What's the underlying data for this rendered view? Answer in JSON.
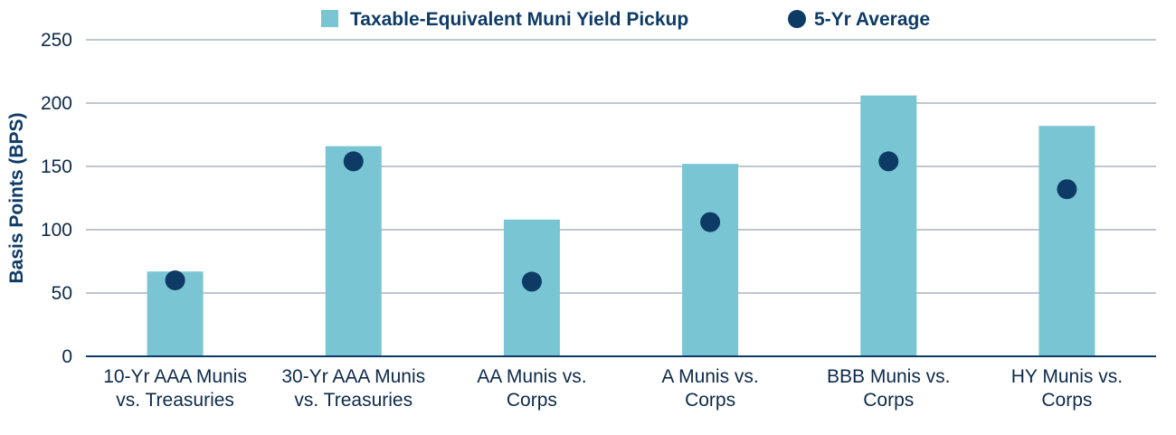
{
  "chart_data": {
    "type": "bar",
    "categories": [
      [
        "10-Yr AAA Munis",
        "vs. Treasuries"
      ],
      [
        "30-Yr AAA Munis",
        "vs. Treasuries"
      ],
      [
        "AA Munis vs.",
        "Corps"
      ],
      [
        "A Munis vs.",
        "Corps"
      ],
      [
        "BBB Munis vs.",
        "Corps"
      ],
      [
        "HY Munis vs.",
        "Corps"
      ]
    ],
    "series": [
      {
        "name": "Taxable-Equivalent Muni Yield Pickup",
        "mark": "bar",
        "values": [
          67,
          166,
          108,
          152,
          206,
          182
        ]
      },
      {
        "name": "5-Yr Average",
        "mark": "dot",
        "values": [
          60,
          154,
          59,
          106,
          154,
          132
        ]
      }
    ],
    "ylabel": "Basis Points (BPS)",
    "xlabel": "",
    "ylim": [
      0,
      250
    ],
    "yticks": [
      0,
      50,
      100,
      150,
      200,
      250
    ],
    "grid": true,
    "legend_position": "top-center",
    "colors": {
      "bar": "#7ac5d4",
      "dot": "#0d3b66",
      "axis": "#0d3b66",
      "grid": "#7f8f9e"
    }
  }
}
